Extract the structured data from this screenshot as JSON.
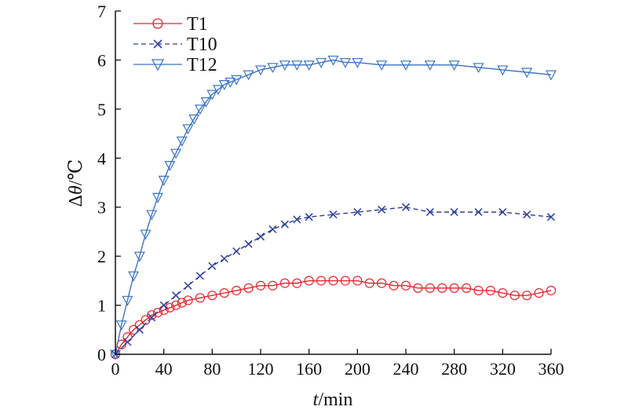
{
  "chart_data": {
    "type": "line",
    "xlabel_italic": "t",
    "xlabel_rest": "/min",
    "ylabel_prefix": "Δ",
    "ylabel_italic": "θ",
    "ylabel_rest": "/℃",
    "xlim": [
      0,
      360
    ],
    "ylim": [
      0,
      7
    ],
    "xticks": [
      0,
      40,
      80,
      120,
      160,
      200,
      240,
      280,
      320,
      360
    ],
    "yticks": [
      0,
      1,
      2,
      3,
      4,
      5,
      6,
      7
    ],
    "grid": false,
    "legend_position": "top-left",
    "series": [
      {
        "name": "T1",
        "color": "#e8242c",
        "marker": "circle",
        "dash": "solid",
        "x": [
          0,
          5,
          10,
          15,
          20,
          25,
          30,
          35,
          40,
          45,
          50,
          55,
          60,
          70,
          80,
          90,
          100,
          110,
          120,
          130,
          140,
          150,
          160,
          170,
          180,
          190,
          200,
          210,
          220,
          230,
          240,
          250,
          260,
          270,
          280,
          290,
          300,
          310,
          320,
          330,
          340,
          350,
          360
        ],
        "y": [
          0,
          0.2,
          0.35,
          0.5,
          0.6,
          0.7,
          0.8,
          0.85,
          0.9,
          0.95,
          1.0,
          1.05,
          1.1,
          1.15,
          1.2,
          1.25,
          1.3,
          1.35,
          1.4,
          1.4,
          1.45,
          1.45,
          1.5,
          1.5,
          1.5,
          1.5,
          1.5,
          1.45,
          1.45,
          1.4,
          1.4,
          1.35,
          1.35,
          1.35,
          1.35,
          1.35,
          1.3,
          1.3,
          1.25,
          1.2,
          1.2,
          1.25,
          1.3
        ]
      },
      {
        "name": "T10",
        "color": "#2e3f9e",
        "marker": "x",
        "dash": "dashed",
        "x": [
          0,
          10,
          20,
          30,
          40,
          50,
          60,
          70,
          80,
          90,
          100,
          110,
          120,
          130,
          140,
          150,
          160,
          180,
          200,
          220,
          240,
          260,
          280,
          300,
          320,
          340,
          360
        ],
        "y": [
          0,
          0.25,
          0.5,
          0.75,
          1.0,
          1.2,
          1.4,
          1.6,
          1.8,
          1.95,
          2.1,
          2.25,
          2.4,
          2.55,
          2.65,
          2.75,
          2.8,
          2.85,
          2.9,
          2.95,
          3.0,
          2.9,
          2.9,
          2.9,
          2.9,
          2.85,
          2.8
        ]
      },
      {
        "name": "T12",
        "color": "#3b74c4",
        "marker": "triangle-down",
        "dash": "solid",
        "x": [
          0,
          5,
          10,
          15,
          20,
          25,
          30,
          35,
          40,
          45,
          50,
          55,
          60,
          65,
          70,
          75,
          80,
          85,
          90,
          95,
          100,
          110,
          120,
          130,
          140,
          150,
          160,
          170,
          180,
          190,
          200,
          220,
          240,
          260,
          280,
          300,
          320,
          340,
          360
        ],
        "y": [
          0,
          0.6,
          1.1,
          1.6,
          2.0,
          2.45,
          2.85,
          3.2,
          3.55,
          3.85,
          4.1,
          4.35,
          4.6,
          4.8,
          5.0,
          5.15,
          5.3,
          5.4,
          5.5,
          5.55,
          5.6,
          5.7,
          5.8,
          5.85,
          5.9,
          5.9,
          5.9,
          5.95,
          6.0,
          5.95,
          5.95,
          5.9,
          5.9,
          5.9,
          5.9,
          5.85,
          5.8,
          5.75,
          5.7
        ]
      }
    ]
  }
}
